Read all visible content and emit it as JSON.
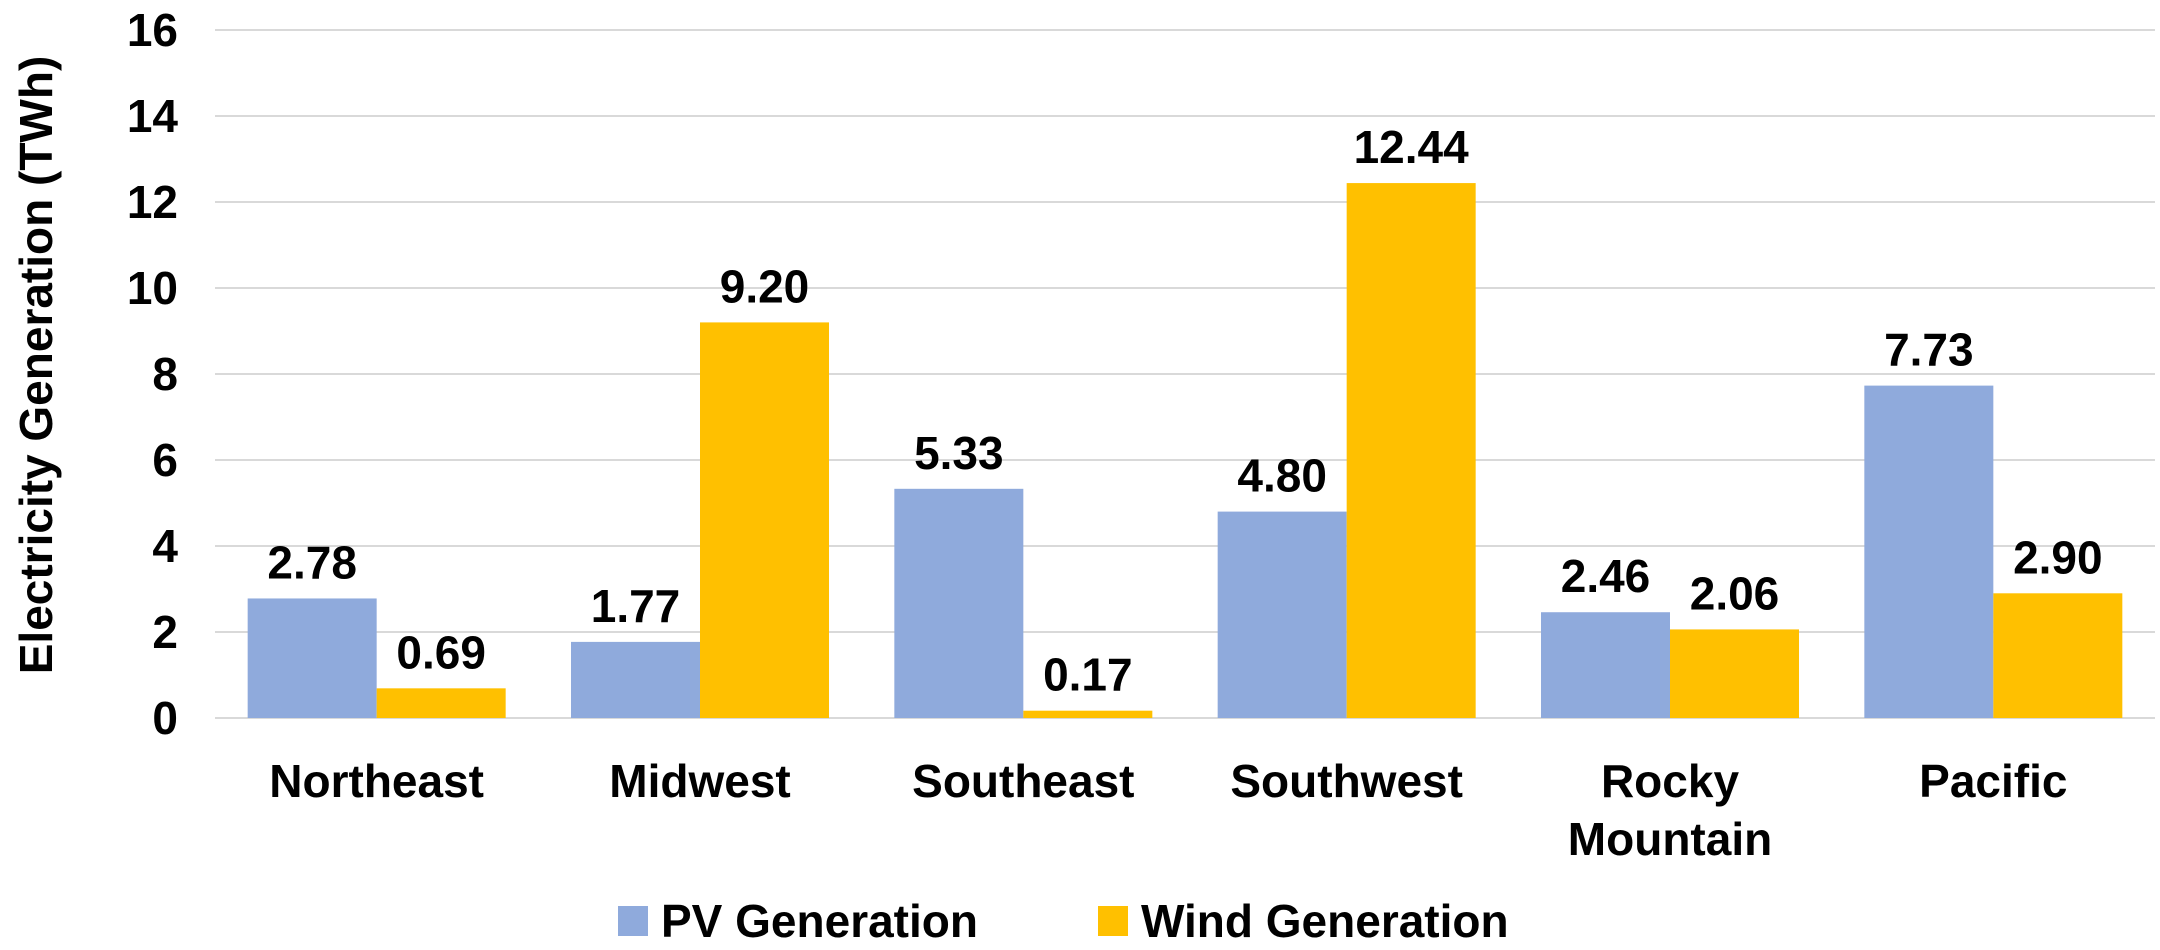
{
  "chart_data": {
    "type": "bar",
    "ylabel": "Electricity Generation (TWh)",
    "ylim": [
      0,
      16
    ],
    "yticks": [
      0,
      2,
      4,
      6,
      8,
      10,
      12,
      14,
      16
    ],
    "grid": true,
    "legend_position": "bottom",
    "categories": [
      [
        "Northeast"
      ],
      [
        "Midwest"
      ],
      [
        "Southeast"
      ],
      [
        "Southwest"
      ],
      [
        "Rocky",
        "Mountain"
      ],
      [
        "Pacific"
      ]
    ],
    "series": [
      {
        "name": "PV Generation",
        "color": "#8faadc",
        "values": [
          2.78,
          1.77,
          5.33,
          4.8,
          2.46,
          7.73
        ],
        "labels": [
          "2.78",
          "1.77",
          "5.33",
          "4.80",
          "2.46",
          "7.73"
        ]
      },
      {
        "name": "Wind Generation",
        "color": "#ffc000",
        "values": [
          0.69,
          9.2,
          0.17,
          12.44,
          2.06,
          2.9
        ],
        "labels": [
          "0.69",
          "9.20",
          "0.17",
          "12.44",
          "2.06",
          "2.90"
        ]
      }
    ]
  }
}
